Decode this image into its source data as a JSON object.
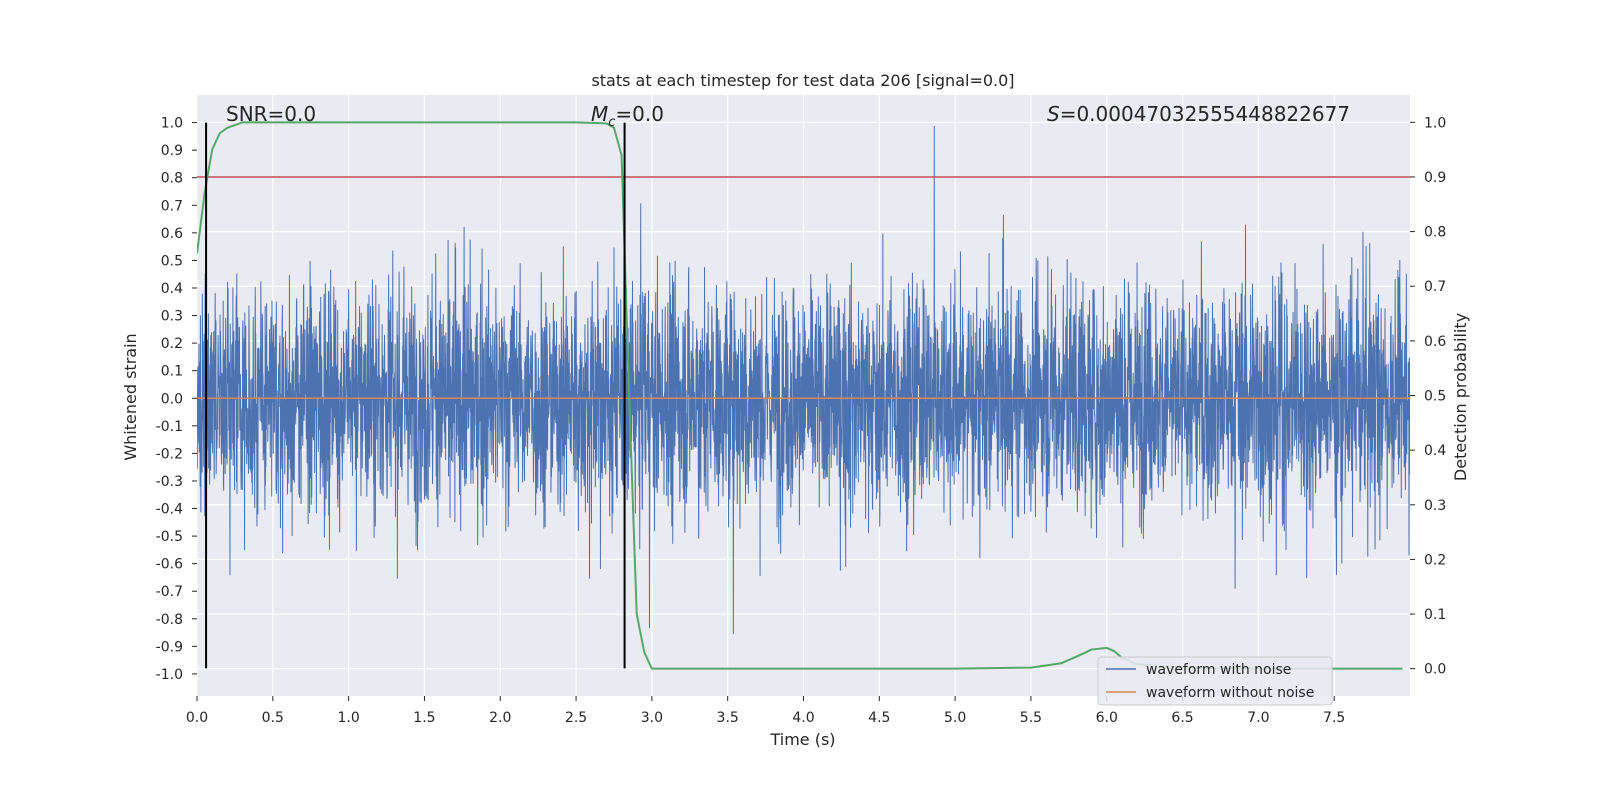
{
  "chart_data": {
    "type": "line",
    "title": "stats at each timestep for test data 206 [signal=0.0]",
    "xlabel": "Time (s)",
    "ylabel": "Whitened strain",
    "ylabel_right": "Detection probability",
    "xlim": [
      0.0,
      8.0
    ],
    "ylim": [
      -1.08,
      1.1
    ],
    "ylim_right": [
      -0.05,
      1.05
    ],
    "x_ticks": [
      "0.0",
      "0.5",
      "1.0",
      "1.5",
      "2.0",
      "2.5",
      "3.0",
      "3.5",
      "4.0",
      "4.5",
      "5.0",
      "5.5",
      "6.0",
      "6.5",
      "7.0",
      "7.5"
    ],
    "y_ticks": [
      "1.0",
      "0.9",
      "0.8",
      "0.7",
      "0.6",
      "0.5",
      "0.4",
      "0.3",
      "0.2",
      "0.1",
      "0.0",
      "-0.1",
      "-0.2",
      "-0.3",
      "-0.4",
      "-0.5",
      "-0.6",
      "-0.7",
      "-0.8",
      "-0.9",
      "-1.0"
    ],
    "y_ticks_right": [
      "1.0",
      "0.9",
      "0.8",
      "0.7",
      "0.6",
      "0.5",
      "0.4",
      "0.3",
      "0.2",
      "0.1",
      "0.0"
    ],
    "grid": true,
    "threshold_line": {
      "y_right": 0.9,
      "color": "#c44e52"
    },
    "vertical_markers": [
      0.06,
      2.82
    ],
    "annotations": {
      "snr": "SNR=0.0",
      "mc_sym": "M",
      "mc_sub": "c",
      "mc_val": "=0.0",
      "s_sym": "S",
      "s_val": "=0.00047032555448822677"
    },
    "legend": {
      "placement": "lower right",
      "entries": [
        "waveform with noise",
        "waveform without noise"
      ]
    },
    "colors": {
      "noise": "#4c72b0",
      "clean": "#dd8452",
      "prob": "#55a868",
      "threshold": "#c44e52",
      "background": "#eaeaf2"
    },
    "series": [
      {
        "name": "waveform with noise",
        "axis": "left",
        "kind": "noise",
        "amplitude_typical": 0.35,
        "peak_max": 1.0,
        "peak_min": -0.97
      },
      {
        "name": "waveform without noise",
        "axis": "left",
        "x": [
          0.0,
          8.0
        ],
        "y": [
          0.0,
          0.0
        ]
      },
      {
        "axis": "right",
        "x": [
          0.0,
          0.05,
          0.1,
          0.15,
          0.2,
          0.25,
          0.3,
          0.35,
          0.4,
          0.5,
          1.0,
          2.0,
          2.5,
          2.7,
          2.75,
          2.8,
          2.85,
          2.9,
          2.95,
          3.0,
          3.5,
          4.0,
          5.0,
          5.5,
          5.7,
          5.8,
          5.9,
          6.0,
          6.05,
          6.1,
          6.2,
          6.5,
          7.0,
          7.5,
          7.95
        ],
        "y": [
          0.76,
          0.87,
          0.95,
          0.98,
          0.99,
          0.995,
          1.0,
          1.0,
          1.0,
          1.0,
          1.0,
          1.0,
          1.0,
          0.998,
          0.99,
          0.94,
          0.5,
          0.1,
          0.03,
          0.0,
          0.0,
          0.0,
          0.0,
          0.002,
          0.01,
          0.022,
          0.035,
          0.038,
          0.032,
          0.02,
          0.008,
          0.002,
          0.0,
          0.0,
          0.0
        ]
      }
    ]
  }
}
